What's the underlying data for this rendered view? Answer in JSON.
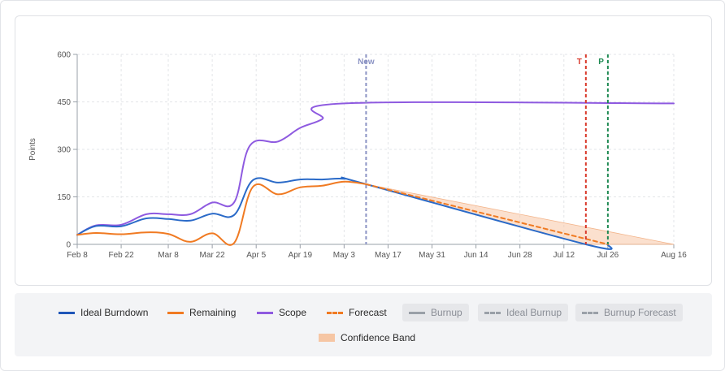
{
  "chart_data": {
    "type": "line",
    "ylabel": "Points",
    "ylim": [
      0,
      600
    ],
    "yticks": [
      "0",
      "150",
      "300",
      "450",
      "600"
    ],
    "xticks": [
      "Feb 8",
      "Feb 22",
      "Mar 8",
      "Mar 22",
      "Apr 5",
      "Apr 19",
      "May 3",
      "May 17",
      "May 31",
      "Jun 14",
      "Jun 28",
      "Jul 12",
      "Jul 26",
      "Aug 16"
    ],
    "x_range": [
      "Feb 8",
      "Aug 16"
    ],
    "grid": true,
    "markers": [
      {
        "label": "New",
        "date": "May 10",
        "color": "#8b93c4"
      },
      {
        "label": "T",
        "date": "Jul 19",
        "color": "#d9392b"
      },
      {
        "label": "P",
        "date": "Jul 26",
        "color": "#1f8a53"
      }
    ],
    "series": [
      {
        "name": "Scope",
        "color": "#8e5ae0",
        "points": [
          [
            "Feb 8",
            30
          ],
          [
            "Feb 14",
            60
          ],
          [
            "Feb 22",
            62
          ],
          [
            "Mar 1",
            95
          ],
          [
            "Mar 8",
            95
          ],
          [
            "Mar 15",
            95
          ],
          [
            "Mar 22",
            132
          ],
          [
            "Mar 29",
            133
          ],
          [
            "Apr 3",
            312
          ],
          [
            "Apr 12",
            325
          ],
          [
            "Apr 19",
            368
          ],
          [
            "Apr 26",
            395
          ],
          [
            "May 3",
            445
          ],
          [
            "Aug 16",
            445
          ]
        ]
      },
      {
        "name": "Ideal Burndown",
        "color": "#2a6ac8",
        "points": [
          [
            "Feb 8",
            30
          ],
          [
            "Feb 14",
            58
          ],
          [
            "Feb 22",
            57
          ],
          [
            "Mar 1",
            82
          ],
          [
            "Mar 8",
            80
          ],
          [
            "Mar 15",
            75
          ],
          [
            "Mar 22",
            97
          ],
          [
            "Mar 29",
            93
          ],
          [
            "Apr 4",
            203
          ],
          [
            "Apr 12",
            195
          ],
          [
            "Apr 19",
            205
          ],
          [
            "Apr 26",
            205
          ],
          [
            "May 3",
            207
          ],
          [
            "May 10",
            190
          ],
          [
            "Jul 19",
            0
          ],
          [
            "Jul 26",
            0
          ]
        ]
      },
      {
        "name": "Remaining",
        "color": "#f07a22",
        "points": [
          [
            "Feb 8",
            30
          ],
          [
            "Feb 14",
            36
          ],
          [
            "Feb 22",
            32
          ],
          [
            "Mar 1",
            38
          ],
          [
            "Mar 8",
            33
          ],
          [
            "Mar 15",
            8
          ],
          [
            "Mar 22",
            35
          ],
          [
            "Mar 29",
            5
          ],
          [
            "Apr 4",
            182
          ],
          [
            "Apr 12",
            158
          ],
          [
            "Apr 19",
            180
          ],
          [
            "Apr 26",
            185
          ],
          [
            "May 3",
            198
          ],
          [
            "May 10",
            190
          ]
        ]
      },
      {
        "name": "Forecast",
        "color": "#f07a22",
        "dashed": true,
        "points": [
          [
            "May 10",
            190
          ],
          [
            "Jul 26",
            0
          ]
        ]
      }
    ],
    "confidence_band": {
      "color": "#f7c7a6",
      "upper": [
        [
          "May 10",
          190
        ],
        [
          "Aug 16",
          0
        ]
      ],
      "lower": [
        [
          "May 10",
          190
        ],
        [
          "Jul 19",
          0
        ]
      ]
    }
  },
  "legend": [
    {
      "label": "Ideal Burndown",
      "color": "#1f56b8",
      "style": "solid",
      "active": true
    },
    {
      "label": "Remaining",
      "color": "#f07a22",
      "style": "solid",
      "active": true
    },
    {
      "label": "Scope",
      "color": "#8e5ae0",
      "style": "solid",
      "active": true
    },
    {
      "label": "Forecast",
      "color": "#f07a22",
      "style": "dashed",
      "active": true
    },
    {
      "label": "Burnup",
      "color": "#9aa0a8",
      "style": "solid",
      "active": false
    },
    {
      "label": "Ideal Burnup",
      "color": "#9aa0a8",
      "style": "dashed",
      "active": false
    },
    {
      "label": "Burnup Forecast",
      "color": "#9aa0a8",
      "style": "dashed",
      "active": false
    },
    {
      "label": "Confidence Band",
      "color": "#f6c6a4",
      "style": "band",
      "active": true
    }
  ]
}
